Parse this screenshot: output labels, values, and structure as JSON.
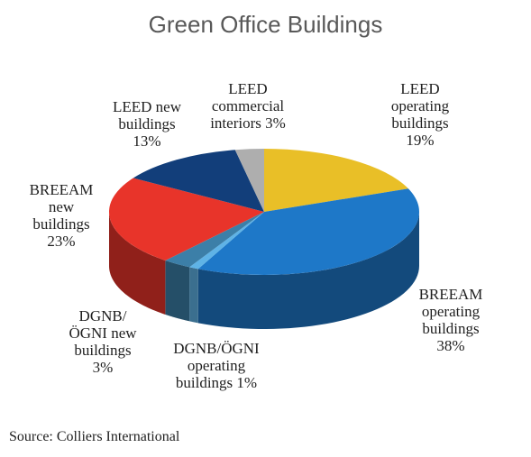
{
  "chart_data": {
    "type": "pie",
    "title": "Green Office Buildings",
    "source": "Source: Colliers International",
    "slices": [
      {
        "label": [
          "LEED",
          "operating",
          "buildings",
          "19%"
        ],
        "value": 19,
        "color": "#E9BF27"
      },
      {
        "label": [
          "BREEAM",
          "operating",
          "buildings",
          "38%"
        ],
        "value": 38,
        "color": "#1E78C8"
      },
      {
        "label": [
          "DGNB/ÖGNI",
          "operating",
          "buildings 1%"
        ],
        "value": 1,
        "color": "#5FB3E6"
      },
      {
        "label": [
          "DGNB/",
          "ÖGNI new",
          "buildings",
          "3%"
        ],
        "value": 3,
        "color": "#3C7FA8"
      },
      {
        "label": [
          "BREEAM",
          "new",
          "buildings",
          "23%"
        ],
        "value": 23,
        "color": "#E8342A"
      },
      {
        "label": [
          "LEED new",
          "buildings",
          "13%"
        ],
        "value": 13,
        "color": "#123E7A"
      },
      {
        "label": [
          "LEED",
          "commercial",
          "interiors 3%"
        ],
        "value": 3,
        "color": "#AEAEAE"
      }
    ]
  }
}
